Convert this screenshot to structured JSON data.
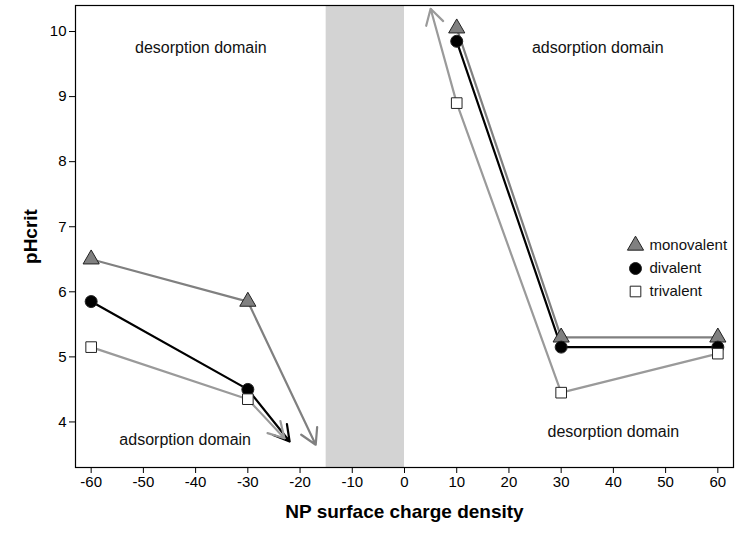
{
  "chart_data": {
    "type": "line",
    "x_label": "NP surface charge density",
    "y_label": "pHcrit",
    "x": [
      -60,
      -30,
      null,
      10,
      30,
      60
    ],
    "series": [
      {
        "name": "monovalent",
        "color": "#808080",
        "marker": "triangle",
        "values": [
          6.5,
          5.85,
          null,
          10.05,
          5.3,
          5.3
        ],
        "arrows": [
          {
            "x1": -30,
            "y1": 5.85,
            "x2": -17,
            "y2": 3.65
          }
        ]
      },
      {
        "name": "divalent",
        "color": "#000000",
        "marker": "circle",
        "values": [
          5.85,
          4.5,
          null,
          9.85,
          5.15,
          5.15
        ],
        "arrows": [
          {
            "x1": -30,
            "y1": 4.5,
            "x2": -22,
            "y2": 3.7
          }
        ]
      },
      {
        "name": "trivalent",
        "color": "#9a9a9a",
        "marker": "open-square",
        "values": [
          5.15,
          4.35,
          null,
          8.9,
          4.45,
          5.05
        ],
        "arrows": [
          {
            "x1": -30,
            "y1": 4.35,
            "x2": -23,
            "y2": 3.75
          },
          {
            "x1": 10,
            "y1": 8.9,
            "x2": 5,
            "y2": 10.35
          }
        ]
      }
    ],
    "xlim": [
      -63,
      63
    ],
    "xticks": [
      -60,
      -50,
      -40,
      -30,
      -20,
      -10,
      0,
      10,
      20,
      30,
      40,
      50,
      60
    ],
    "ylim": [
      3.3,
      10.4
    ],
    "yticks": [
      4,
      5,
      6,
      7,
      8,
      9,
      10
    ],
    "legend": "right",
    "shaded_region": {
      "x": [
        -15,
        0
      ],
      "color": "#d3d3d3"
    },
    "annotations": [
      {
        "text": "desorption domain",
        "x": -39,
        "y": 9.75
      },
      {
        "text": "adsorption domain",
        "x": 37,
        "y": 9.75
      },
      {
        "text": "adsorption domain",
        "x": -42,
        "y": 3.72
      },
      {
        "text": "desorption domain",
        "x": 40,
        "y": 3.85
      }
    ]
  }
}
